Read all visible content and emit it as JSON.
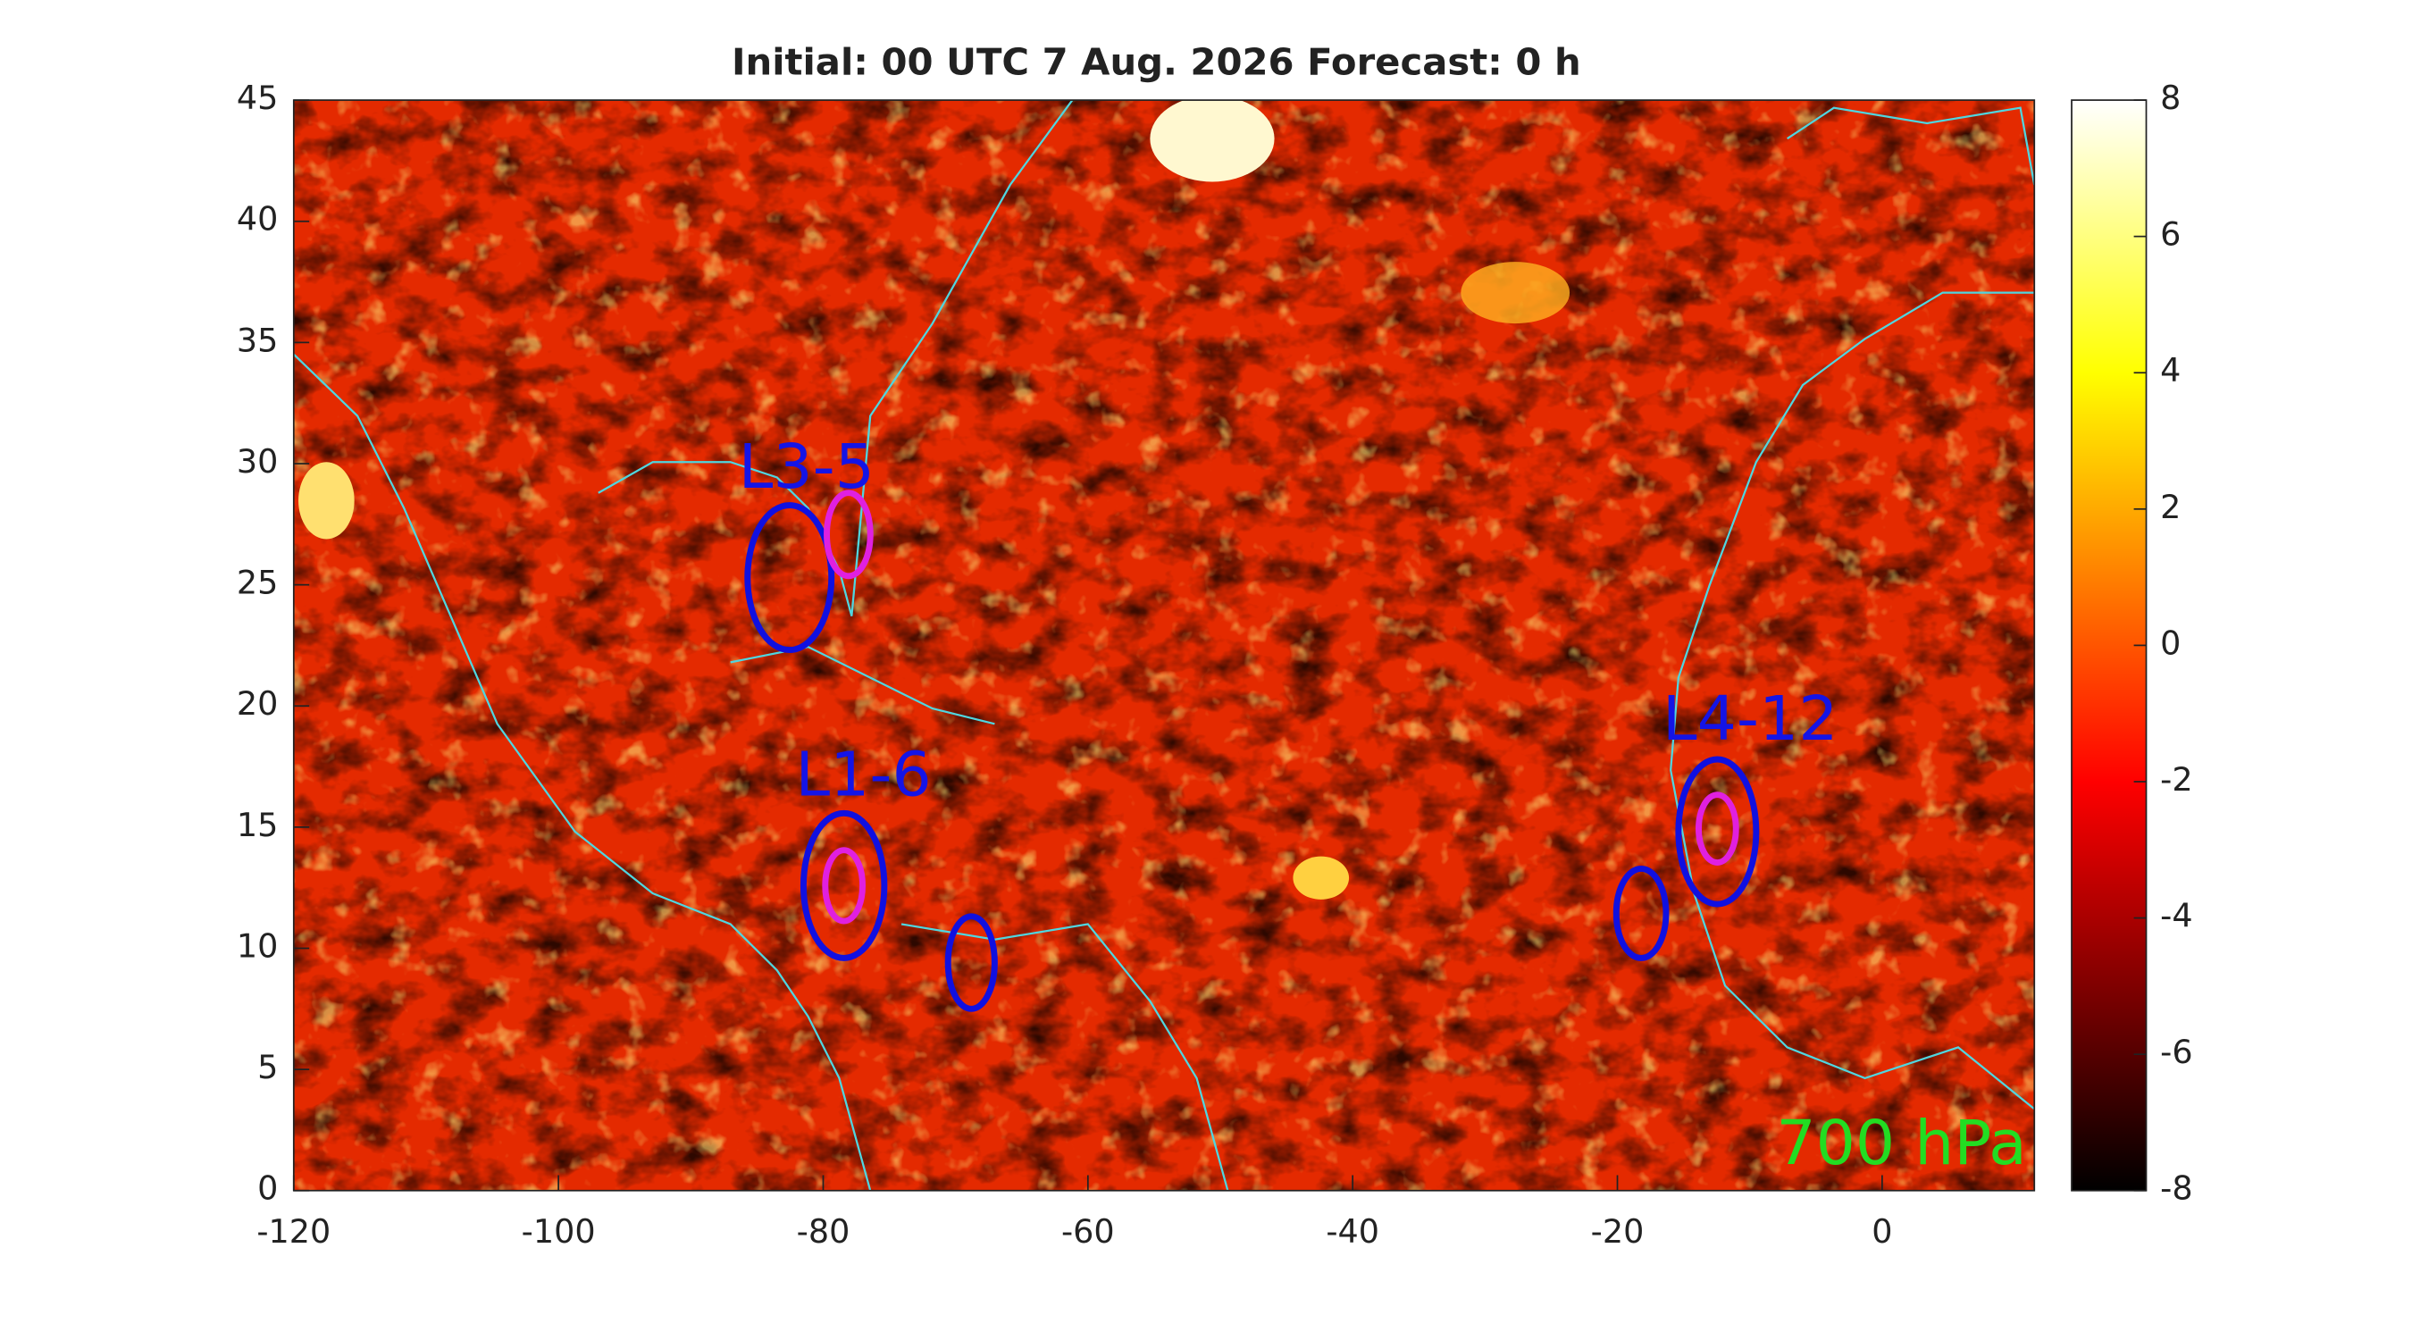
{
  "chart_data": {
    "type": "heatmap",
    "title": "Initial: 00 UTC 7 Aug. 2026 Forecast: 0 h",
    "xlim": [
      -120,
      11.5
    ],
    "xticks": [
      -120,
      -100,
      -80,
      -60,
      -40,
      -20,
      0
    ],
    "ylim": [
      0,
      45
    ],
    "yticks": [
      0,
      5,
      10,
      15,
      20,
      25,
      30,
      35,
      40,
      45
    ],
    "colorbar": {
      "lim": [
        -8,
        8
      ],
      "ticks": [
        -8,
        -6,
        -4,
        -2,
        0,
        2,
        4,
        6,
        8
      ],
      "colormap": "hot"
    },
    "annotations": [
      {
        "text": "L3-5",
        "x": -86.4,
        "y": 29.7,
        "color": "#1414e6"
      },
      {
        "text": "L1-6",
        "x": -82.1,
        "y": 17.0,
        "color": "#1414e6"
      },
      {
        "text": "L4-12",
        "x": -16.6,
        "y": 19.3,
        "color": "#1414e6"
      },
      {
        "text": "700 hPa",
        "x": -8.0,
        "y": 1.8,
        "color": "#22dd22"
      }
    ]
  }
}
